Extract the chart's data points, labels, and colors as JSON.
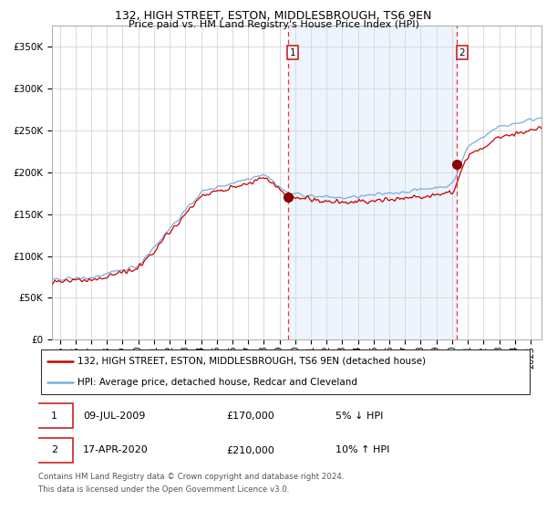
{
  "title1": "132, HIGH STREET, ESTON, MIDDLESBROUGH, TS6 9EN",
  "title2": "Price paid vs. HM Land Registry's House Price Index (HPI)",
  "legend1": "132, HIGH STREET, ESTON, MIDDLESBROUGH, TS6 9EN (detached house)",
  "legend2": "HPI: Average price, detached house, Redcar and Cleveland",
  "sale1_date": "09-JUL-2009",
  "sale1_price": 170000,
  "sale1_pct": "5% ↓ HPI",
  "sale2_date": "17-APR-2020",
  "sale2_price": 210000,
  "sale2_pct": "10% ↑ HPI",
  "sale1_x": 2009.52,
  "sale2_x": 2020.29,
  "footnote1": "Contains HM Land Registry data © Crown copyright and database right 2024.",
  "footnote2": "This data is licensed under the Open Government Licence v3.0.",
  "hpi_color": "#7aaddc",
  "price_color": "#cc0000",
  "sale_dot_color": "#8B0000",
  "vline_color": "#ee3333",
  "shade_color": "#cce0f5",
  "ylim": [
    0,
    375000
  ],
  "xlim_start": 1994.5,
  "xlim_end": 2025.7,
  "yticks": [
    0,
    50000,
    100000,
    150000,
    200000,
    250000,
    300000,
    350000
  ],
  "xticks": [
    1995,
    1996,
    1997,
    1998,
    1999,
    2000,
    2001,
    2002,
    2003,
    2004,
    2005,
    2006,
    2007,
    2008,
    2009,
    2010,
    2011,
    2012,
    2013,
    2014,
    2015,
    2016,
    2017,
    2018,
    2019,
    2020,
    2021,
    2022,
    2023,
    2024,
    2025
  ]
}
